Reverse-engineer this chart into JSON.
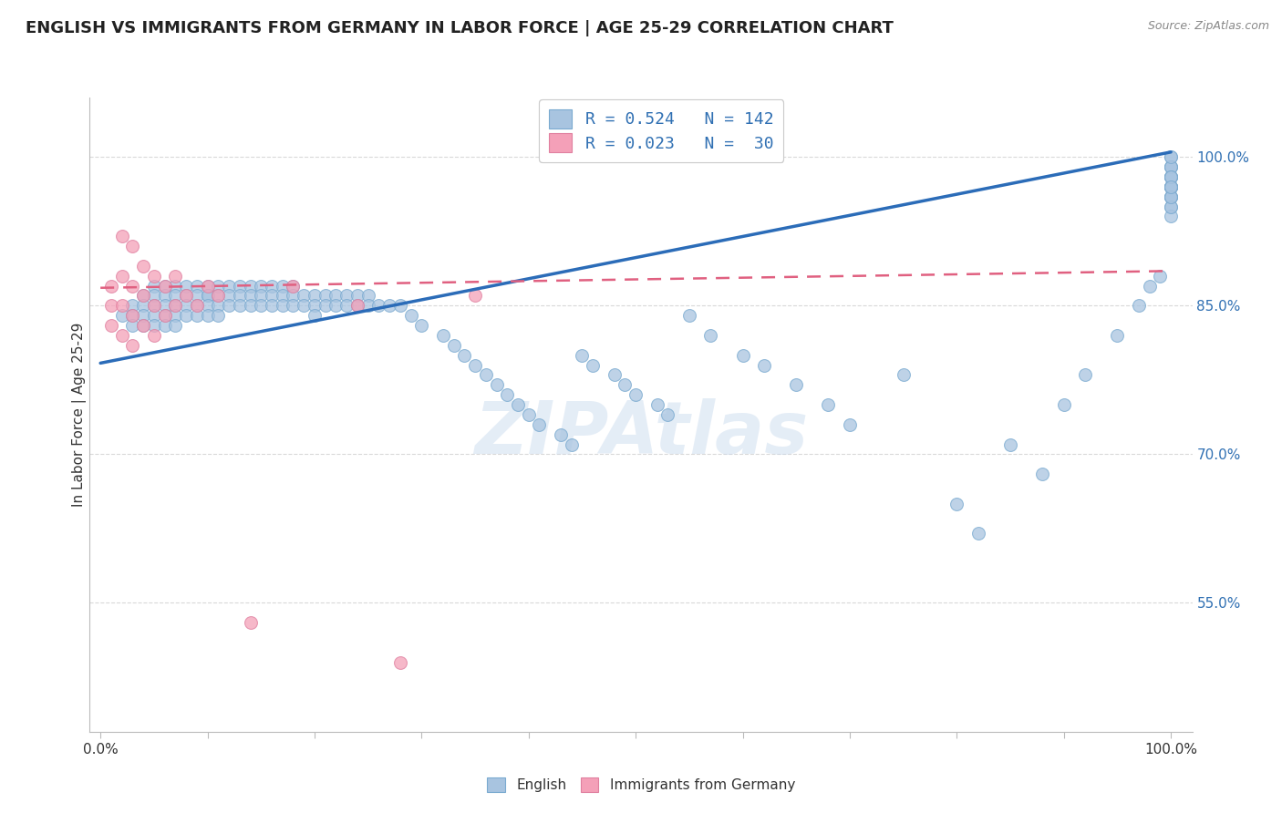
{
  "title": "ENGLISH VS IMMIGRANTS FROM GERMANY IN LABOR FORCE | AGE 25-29 CORRELATION CHART",
  "source": "Source: ZipAtlas.com",
  "ylabel": "In Labor Force | Age 25-29",
  "legend_english": "English",
  "legend_germany": "Immigrants from Germany",
  "R_english": 0.524,
  "N_english": 142,
  "R_germany": 0.023,
  "N_germany": 30,
  "english_color": "#a8c4e0",
  "germany_color": "#f4a0b8",
  "english_line_color": "#2b6cb8",
  "germany_line_color": "#e06080",
  "background_color": "#ffffff",
  "grid_color": "#d0d0d0",
  "watermark": "ZIPAtlas",
  "title_fontsize": 13,
  "ytick_color": "#3070b3",
  "xlim": [
    -0.01,
    1.02
  ],
  "ylim": [
    0.42,
    1.06
  ],
  "yticks": [
    0.55,
    0.7,
    0.85,
    1.0
  ],
  "ytick_labels": [
    "55.0%",
    "70.0%",
    "85.0%",
    "100.0%"
  ],
  "eng_x": [
    0.02,
    0.03,
    0.03,
    0.03,
    0.04,
    0.04,
    0.04,
    0.04,
    0.05,
    0.05,
    0.05,
    0.05,
    0.05,
    0.06,
    0.06,
    0.06,
    0.06,
    0.06,
    0.07,
    0.07,
    0.07,
    0.07,
    0.07,
    0.08,
    0.08,
    0.08,
    0.08,
    0.09,
    0.09,
    0.09,
    0.09,
    0.1,
    0.1,
    0.1,
    0.1,
    0.1,
    0.11,
    0.11,
    0.11,
    0.11,
    0.12,
    0.12,
    0.12,
    0.13,
    0.13,
    0.13,
    0.14,
    0.14,
    0.14,
    0.15,
    0.15,
    0.15,
    0.16,
    0.16,
    0.16,
    0.17,
    0.17,
    0.17,
    0.18,
    0.18,
    0.18,
    0.19,
    0.19,
    0.2,
    0.2,
    0.2,
    0.21,
    0.21,
    0.22,
    0.22,
    0.23,
    0.23,
    0.24,
    0.24,
    0.25,
    0.25,
    0.26,
    0.27,
    0.28,
    0.29,
    0.3,
    0.32,
    0.33,
    0.34,
    0.35,
    0.36,
    0.37,
    0.38,
    0.39,
    0.4,
    0.41,
    0.43,
    0.44,
    0.45,
    0.46,
    0.48,
    0.49,
    0.5,
    0.52,
    0.53,
    0.55,
    0.57,
    0.6,
    0.62,
    0.65,
    0.68,
    0.7,
    0.75,
    0.8,
    0.82,
    0.85,
    0.88,
    0.9,
    0.92,
    0.95,
    0.97,
    0.98,
    0.99,
    1.0,
    1.0,
    1.0,
    1.0,
    1.0,
    1.0,
    1.0,
    1.0,
    1.0,
    1.0,
    1.0,
    1.0,
    1.0,
    1.0,
    1.0,
    1.0,
    1.0,
    1.0,
    1.0,
    1.0,
    1.0,
    1.0,
    1.0,
    1.0
  ],
  "eng_y": [
    0.84,
    0.85,
    0.84,
    0.83,
    0.86,
    0.85,
    0.84,
    0.83,
    0.87,
    0.86,
    0.85,
    0.84,
    0.83,
    0.87,
    0.86,
    0.85,
    0.84,
    0.83,
    0.87,
    0.86,
    0.85,
    0.84,
    0.83,
    0.87,
    0.86,
    0.85,
    0.84,
    0.87,
    0.86,
    0.85,
    0.84,
    0.87,
    0.86,
    0.86,
    0.85,
    0.84,
    0.87,
    0.86,
    0.85,
    0.84,
    0.87,
    0.86,
    0.85,
    0.87,
    0.86,
    0.85,
    0.87,
    0.86,
    0.85,
    0.87,
    0.86,
    0.85,
    0.87,
    0.86,
    0.85,
    0.87,
    0.86,
    0.85,
    0.87,
    0.86,
    0.85,
    0.86,
    0.85,
    0.86,
    0.85,
    0.84,
    0.86,
    0.85,
    0.86,
    0.85,
    0.86,
    0.85,
    0.86,
    0.85,
    0.86,
    0.85,
    0.85,
    0.85,
    0.85,
    0.84,
    0.83,
    0.82,
    0.81,
    0.8,
    0.79,
    0.78,
    0.77,
    0.76,
    0.75,
    0.74,
    0.73,
    0.72,
    0.71,
    0.8,
    0.79,
    0.78,
    0.77,
    0.76,
    0.75,
    0.74,
    0.84,
    0.82,
    0.8,
    0.79,
    0.77,
    0.75,
    0.73,
    0.78,
    0.65,
    0.62,
    0.71,
    0.68,
    0.75,
    0.78,
    0.82,
    0.85,
    0.87,
    0.88,
    1.0,
    0.99,
    0.98,
    0.97,
    0.96,
    0.95,
    0.94,
    0.97,
    0.96,
    0.98,
    0.97,
    0.96,
    0.95,
    0.99,
    0.97,
    0.98,
    0.97,
    0.99,
    0.98,
    0.97,
    0.96,
    1.0,
    0.98,
    0.97
  ],
  "ger_x": [
    0.01,
    0.01,
    0.01,
    0.02,
    0.02,
    0.02,
    0.02,
    0.03,
    0.03,
    0.03,
    0.03,
    0.04,
    0.04,
    0.04,
    0.05,
    0.05,
    0.05,
    0.06,
    0.06,
    0.07,
    0.07,
    0.08,
    0.09,
    0.1,
    0.11,
    0.14,
    0.18,
    0.24,
    0.28,
    0.35
  ],
  "ger_y": [
    0.87,
    0.85,
    0.83,
    0.92,
    0.88,
    0.85,
    0.82,
    0.91,
    0.87,
    0.84,
    0.81,
    0.89,
    0.86,
    0.83,
    0.88,
    0.85,
    0.82,
    0.87,
    0.84,
    0.88,
    0.85,
    0.86,
    0.85,
    0.87,
    0.86,
    0.53,
    0.87,
    0.85,
    0.49,
    0.86
  ],
  "eng_line_x0": 0.0,
  "eng_line_x1": 1.0,
  "eng_line_y0": 0.792,
  "eng_line_y1": 1.005,
  "ger_line_x0": 0.0,
  "ger_line_x1": 1.0,
  "ger_line_y0": 0.868,
  "ger_line_y1": 0.885
}
